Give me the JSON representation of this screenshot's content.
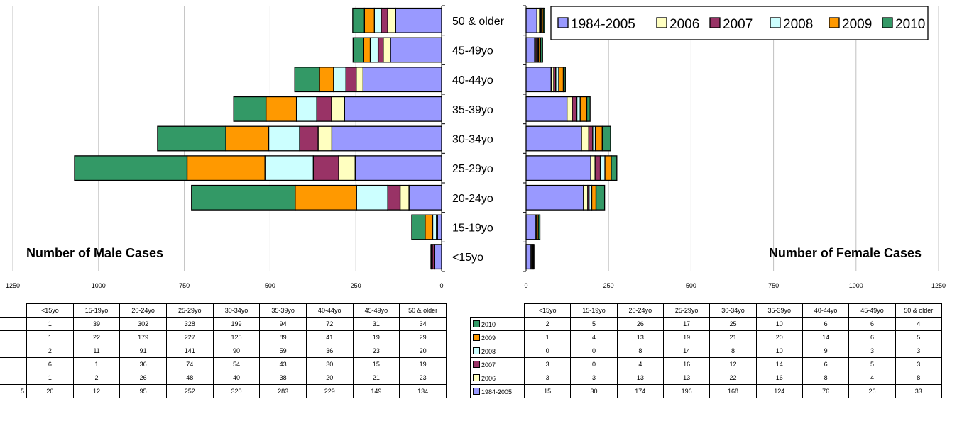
{
  "chart_data": {
    "type": "bar",
    "orientation": "horizontal",
    "stacked": true,
    "layout": "population-pyramid",
    "categories": [
      "<15yo",
      "15-19yo",
      "20-24yo",
      "25-29yo",
      "30-34yo",
      "35-39yo",
      "40-44yo",
      "45-49yo",
      "50 & older"
    ],
    "table_headers": [
      "<15yo",
      "15-19yo",
      "20-24yo",
      "25-29yo",
      "30-34yo",
      "35-39yo",
      "40-44yo",
      "45-49yo",
      "50 & older"
    ],
    "grid": true,
    "legend_position": "top-right",
    "colors": {
      "1984-2005": "#9999ff",
      "2006": "#ffffc0",
      "2007": "#993366",
      "2008": "#ccffff",
      "2009": "#ff9900",
      "2010": "#339966"
    },
    "legend": [
      "1984-2005",
      "2006",
      "2007",
      "2008",
      "2009",
      "2010"
    ],
    "panels": [
      {
        "title": "Number of Male Cases",
        "direction": "left",
        "xlim": [
          0,
          1250
        ],
        "xticks": [
          "0",
          "250",
          "500",
          "750",
          "1000",
          "1250"
        ],
        "visible_row_labels": [
          "",
          "",
          "",
          "",
          "",
          "5"
        ],
        "series": [
          {
            "name": "2010",
            "values": [
              1,
              39,
              302,
              328,
              199,
              94,
              72,
              31,
              34
            ]
          },
          {
            "name": "2009",
            "values": [
              1,
              22,
              179,
              227,
              125,
              89,
              41,
              19,
              29
            ]
          },
          {
            "name": "2008",
            "values": [
              2,
              11,
              91,
              141,
              90,
              59,
              36,
              23,
              20
            ]
          },
          {
            "name": "2007",
            "values": [
              6,
              1,
              36,
              74,
              54,
              43,
              30,
              15,
              19
            ]
          },
          {
            "name": "2006",
            "values": [
              1,
              2,
              26,
              48,
              40,
              38,
              20,
              21,
              23
            ]
          },
          {
            "name": "1984-2005",
            "values": [
              20,
              12,
              95,
              252,
              320,
              283,
              229,
              149,
              134
            ]
          }
        ]
      },
      {
        "title": "Number of Female Cases",
        "direction": "right",
        "xlim": [
          0,
          1250
        ],
        "xticks": [
          "0",
          "250",
          "500",
          "750",
          "1000",
          "1250"
        ],
        "series": [
          {
            "name": "2010",
            "values": [
              2,
              5,
              26,
              17,
              25,
              10,
              6,
              6,
              4
            ]
          },
          {
            "name": "2009",
            "values": [
              1,
              4,
              13,
              19,
              21,
              20,
              14,
              6,
              5
            ]
          },
          {
            "name": "2008",
            "values": [
              0,
              0,
              8,
              14,
              8,
              10,
              9,
              3,
              3
            ]
          },
          {
            "name": "2007",
            "values": [
              3,
              0,
              4,
              16,
              12,
              14,
              6,
              5,
              3
            ]
          },
          {
            "name": "2006",
            "values": [
              3,
              3,
              13,
              13,
              22,
              16,
              8,
              4,
              8
            ]
          },
          {
            "name": "1984-2005",
            "values": [
              15,
              30,
              174,
              196,
              168,
              124,
              76,
              26,
              33
            ]
          }
        ]
      }
    ]
  }
}
